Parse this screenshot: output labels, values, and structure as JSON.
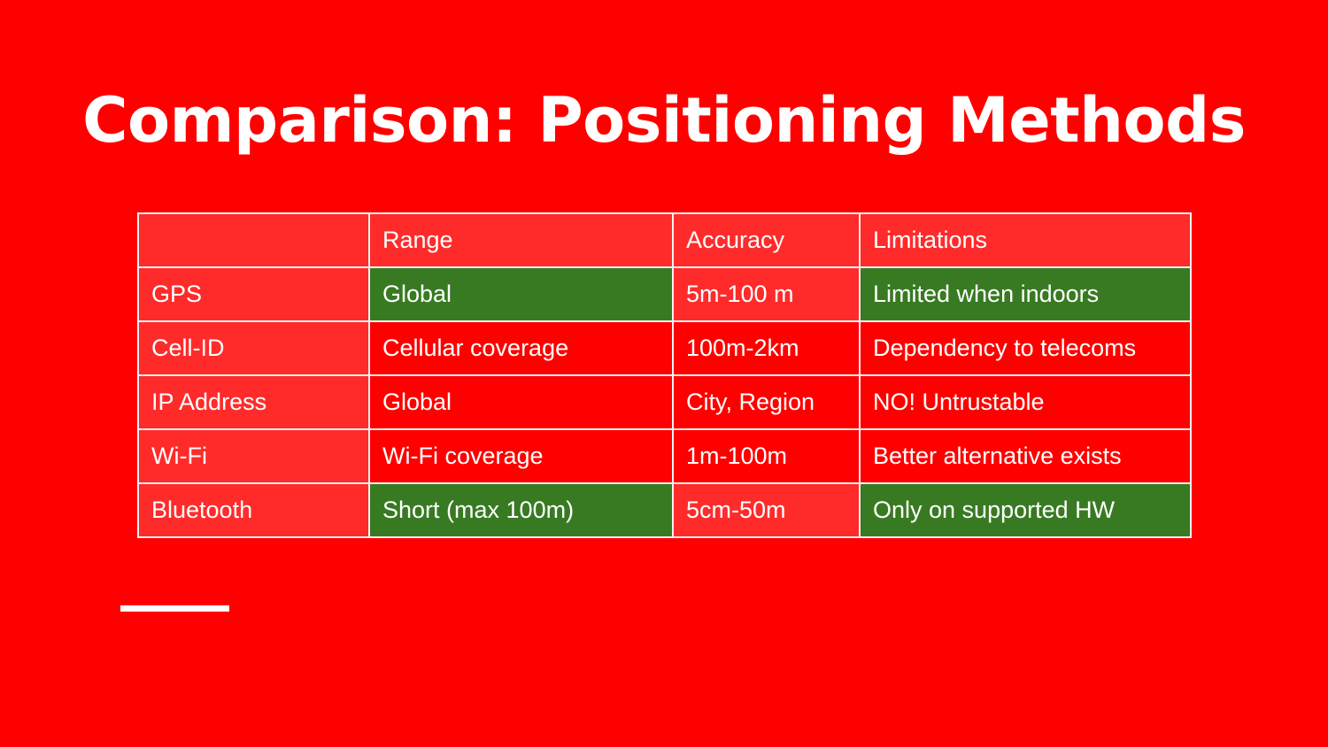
{
  "title": "Comparison: Positioning Methods",
  "colors": {
    "background": "#ff0000",
    "cell_default": "#ff2b2b",
    "cell_alt": "#ff0000",
    "cell_highlight": "#387a22",
    "text": "#ffffff",
    "border": "#f2f2f2"
  },
  "table": {
    "headers": [
      "",
      "Range",
      "Accuracy",
      "Limitations"
    ],
    "rows": [
      [
        "GPS",
        "Global",
        "5m-100 m",
        "Limited when indoors"
      ],
      [
        "Cell-ID",
        "Cellular coverage",
        "100m-2km",
        "Dependency to telecoms"
      ],
      [
        "IP Address",
        "Global",
        "City, Region",
        "NO! Untrustable"
      ],
      [
        "Wi-Fi",
        "Wi-Fi coverage",
        "1m-100m",
        "Better alternative exists"
      ],
      [
        "Bluetooth",
        "Short (max 100m)",
        "5cm-50m",
        "Only on supported HW"
      ]
    ],
    "highlighted_cells": [
      [
        0,
        1
      ],
      [
        0,
        3
      ],
      [
        4,
        1
      ],
      [
        4,
        3
      ]
    ],
    "alternate_rows": [
      1,
      2,
      3
    ]
  }
}
